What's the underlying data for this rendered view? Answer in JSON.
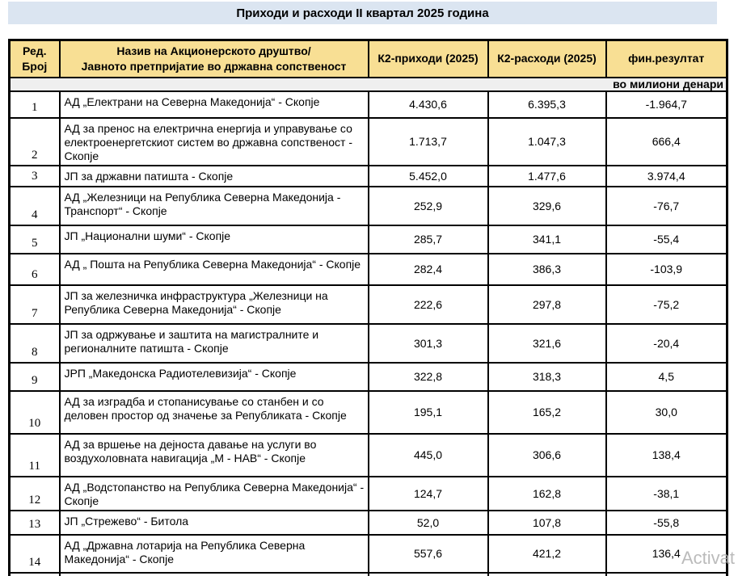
{
  "title": "Приходи и расходи II квартал 2025 година",
  "watermark": "Activat",
  "table": {
    "header": {
      "num_line1": "Ред.",
      "num_line2": "Број",
      "name_line1": "Назив на Акционерското друштво/",
      "name_line2": "Јавното претпријатие во државна сопственост",
      "income": "К2-приходи (2025)",
      "expense": "К2-расходи (2025)",
      "result": "фин.резултат"
    },
    "unit_note": "во милиони денари",
    "rows": [
      {
        "num": "1",
        "name": "АД „Електрани на Северна Македонија“ - Скопје",
        "income": "4.430,6",
        "expense": "6.395,3",
        "result": "-1.964,7"
      },
      {
        "num": "2",
        "name": "АД за пренос на електрична енергија и управување со електроенергетскиот систем во државна сопственост - Скопје",
        "income": "1.713,7",
        "expense": "1.047,3",
        "result": "666,4"
      },
      {
        "num": "3",
        "name": "ЈП за државни патишта - Скопје",
        "income": "5.452,0",
        "expense": "1.477,6",
        "result": "3.974,4"
      },
      {
        "num": "4",
        "name": "АД „Железници на Република Северна Македонија - Транспорт“ - Скопје",
        "income": "252,9",
        "expense": "329,6",
        "result": "-76,7"
      },
      {
        "num": "5",
        "name": "ЈП „Национални шуми“ - Скопје",
        "income": "285,7",
        "expense": "341,1",
        "result": "-55,4"
      },
      {
        "num": "6",
        "name": "АД „ Пошта на Република Северна Македонија“ - Скопје",
        "income": "282,4",
        "expense": "386,3",
        "result": "-103,9"
      },
      {
        "num": "7",
        "name": "ЈП за железничка инфраструктура „Железници на Република Северна Македонија“  - Скопје",
        "income": "222,6",
        "expense": "297,8",
        "result": "-75,2"
      },
      {
        "num": "8",
        "name": "ЈП за одржување и заштита на магистралните и регионалните патишта  - Скопје",
        "income": "301,3",
        "expense": "321,6",
        "result": "-20,4"
      },
      {
        "num": "9",
        "name": "ЈРП „Македонска Радиотелевизија“  - Скопје",
        "income": "322,8",
        "expense": "318,3",
        "result": "4,5"
      },
      {
        "num": "10",
        "name": "АД за изградба и стопанисување со станбен и со деловен простор од значење за Републиката - Скопје",
        "income": "195,1",
        "expense": "165,2",
        "result": "30,0"
      },
      {
        "num": "11",
        "name": "АД за вршење на дејноста давање на услуги во воздухоловната навигација „М - НАВ“ - Скопје",
        "income": "445,0",
        "expense": "306,6",
        "result": "138,4"
      },
      {
        "num": "12",
        "name": "АД „Водстопанство на Република Северна Македонија“ - Скопје",
        "income": "124,7",
        "expense": "162,8",
        "result": "-38,1"
      },
      {
        "num": "13",
        "name": "ЈП „Стрежево“ - Битола",
        "income": "52,0",
        "expense": "107,8",
        "result": "-55,8"
      },
      {
        "num": "14",
        "name": "АД „Државна лотарија на Република Северна Македонија“ - Скопје",
        "income": "557,6",
        "expense": "421,2",
        "result": "136,4"
      }
    ],
    "partial_row": {
      "num": "",
      "name": "",
      "income": "",
      "expense": "",
      "result": ""
    }
  },
  "colors": {
    "title_bg": "#DBE5F1",
    "header_bg": "#F8DF94",
    "unit_bg": "#EFEFEF",
    "border": "#000000",
    "watermark": "#B0B0B0"
  }
}
